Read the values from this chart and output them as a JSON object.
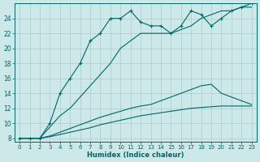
{
  "xlabel": "Humidex (Indice chaleur)",
  "bg_color": "#cce8e8",
  "grid_color": "#aacccc",
  "line_color": "#006666",
  "xlim_min": -0.5,
  "xlim_max": 23.5,
  "ylim_min": 7.5,
  "ylim_max": 26.0,
  "xticks": [
    0,
    1,
    2,
    3,
    4,
    5,
    6,
    7,
    8,
    9,
    10,
    11,
    12,
    13,
    14,
    15,
    16,
    17,
    18,
    19,
    20,
    21,
    22,
    23
  ],
  "yticks": [
    8,
    10,
    12,
    14,
    16,
    18,
    20,
    22,
    24
  ],
  "line1_x": [
    0,
    1,
    2,
    3,
    4,
    5,
    6,
    7,
    8,
    9,
    10,
    11,
    12,
    13,
    14,
    15,
    16,
    17,
    18,
    19,
    20,
    21,
    22,
    23
  ],
  "line1_y": [
    8,
    8,
    8,
    10,
    14,
    16,
    18,
    21,
    22,
    24,
    24,
    25,
    23.5,
    23,
    23,
    22,
    23,
    25,
    24.5,
    23,
    24,
    25,
    25.5,
    26
  ],
  "line2_x": [
    0,
    1,
    2,
    3,
    4,
    5,
    6,
    7,
    8,
    9,
    10,
    11,
    12,
    13,
    14,
    15,
    16,
    17,
    18,
    19,
    20,
    21,
    22,
    23
  ],
  "line2_y": [
    8,
    8,
    8,
    9.5,
    11,
    12,
    13.5,
    15,
    16.5,
    18,
    20,
    21,
    22,
    22,
    22,
    22,
    22.5,
    23,
    24,
    24.5,
    25,
    25,
    25.5,
    25.5
  ],
  "line3_x": [
    0,
    1,
    2,
    3,
    4,
    5,
    6,
    7,
    8,
    9,
    10,
    11,
    12,
    13,
    14,
    15,
    16,
    17,
    18,
    19,
    20,
    21,
    22,
    23
  ],
  "line3_y": [
    8,
    8,
    8,
    8.3,
    8.8,
    9.3,
    9.8,
    10.3,
    10.8,
    11.2,
    11.6,
    12.0,
    12.3,
    12.5,
    13.0,
    13.5,
    14.0,
    14.5,
    15.0,
    15.2,
    14.0,
    13.5,
    13.0,
    12.5
  ],
  "line4_x": [
    0,
    1,
    2,
    3,
    4,
    5,
    6,
    7,
    8,
    9,
    10,
    11,
    12,
    13,
    14,
    15,
    16,
    17,
    18,
    19,
    20,
    21,
    22,
    23
  ],
  "line4_y": [
    8,
    8,
    8,
    8.2,
    8.5,
    8.8,
    9.1,
    9.4,
    9.8,
    10.1,
    10.4,
    10.7,
    11.0,
    11.2,
    11.4,
    11.6,
    11.8,
    12.0,
    12.1,
    12.2,
    12.3,
    12.3,
    12.3,
    12.3
  ]
}
